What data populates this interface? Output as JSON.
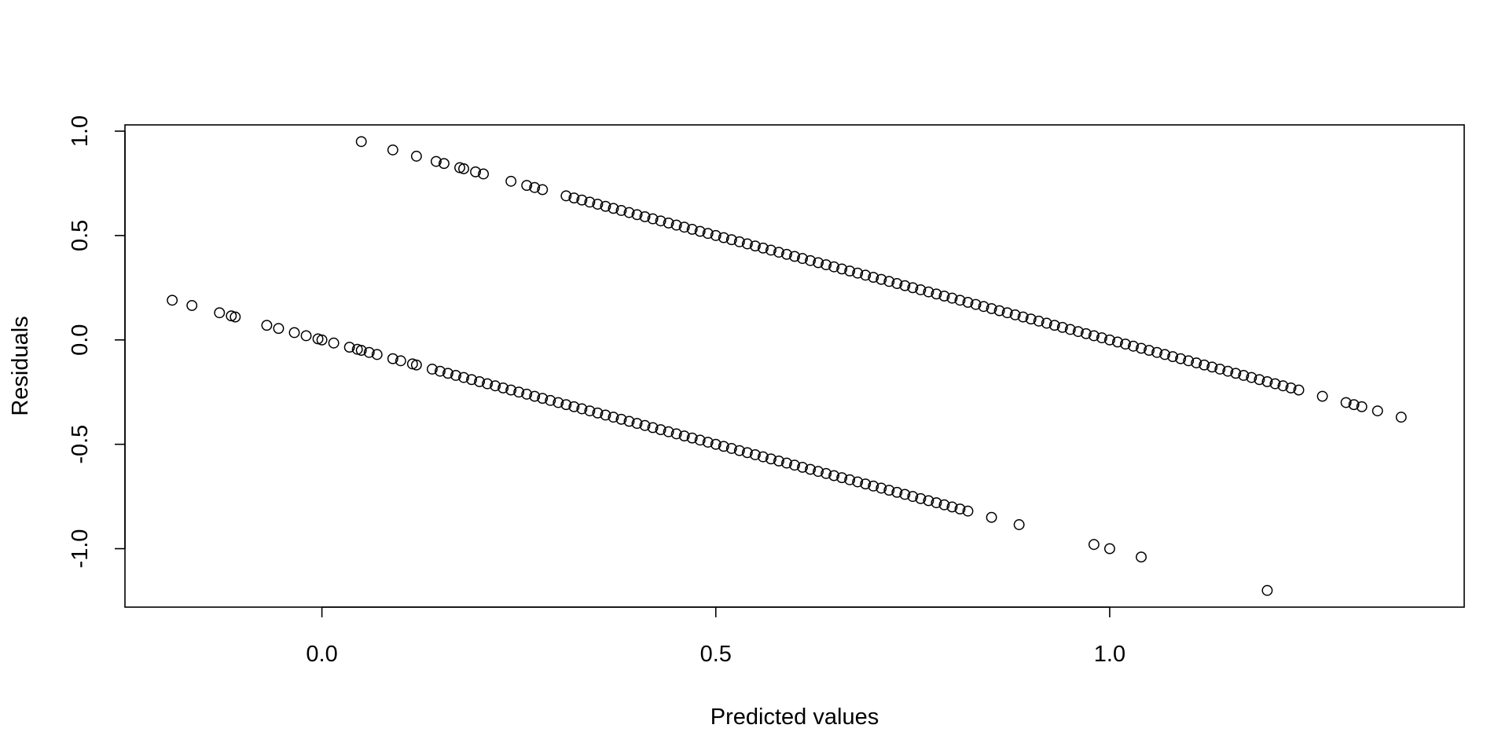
{
  "chart_data": {
    "type": "scatter",
    "title": "",
    "xlabel": "Predicted values",
    "ylabel": "Residuals",
    "xlim": [
      -0.25,
      1.45
    ],
    "ylim": [
      -1.28,
      1.03
    ],
    "x_ticks": [
      0.0,
      0.5,
      1.0
    ],
    "x_tick_labels": [
      "0.0",
      "0.5",
      "1.0"
    ],
    "y_ticks": [
      -1.0,
      -0.5,
      0.0,
      0.5,
      1.0
    ],
    "y_tick_labels": [
      "-1.0",
      "-0.5",
      "0.0",
      "0.5",
      "1.0"
    ],
    "grid": false,
    "marker": "open-circle",
    "colors": {
      "points": "#000000",
      "axes": "#000000",
      "background": "#ffffff"
    },
    "series": [
      {
        "points": [
          [
            0.05,
            0.95
          ],
          [
            0.09,
            0.91
          ],
          [
            0.12,
            0.88
          ],
          [
            0.145,
            0.855
          ],
          [
            0.155,
            0.845
          ],
          [
            0.175,
            0.825
          ],
          [
            0.18,
            0.82
          ],
          [
            0.195,
            0.805
          ],
          [
            0.205,
            0.795
          ],
          [
            0.24,
            0.76
          ],
          [
            0.26,
            0.74
          ],
          [
            0.27,
            0.73
          ],
          [
            0.28,
            0.72
          ],
          [
            0.31,
            0.69
          ],
          [
            0.32,
            0.68
          ],
          [
            0.33,
            0.67
          ],
          [
            0.34,
            0.66
          ],
          [
            0.35,
            0.65
          ],
          [
            0.36,
            0.64
          ],
          [
            0.37,
            0.63
          ],
          [
            0.38,
            0.62
          ],
          [
            0.39,
            0.61
          ],
          [
            0.4,
            0.6
          ],
          [
            0.41,
            0.59
          ],
          [
            0.42,
            0.58
          ],
          [
            0.43,
            0.57
          ],
          [
            0.44,
            0.56
          ],
          [
            0.45,
            0.55
          ],
          [
            0.46,
            0.54
          ],
          [
            0.47,
            0.53
          ],
          [
            0.48,
            0.52
          ],
          [
            0.49,
            0.51
          ],
          [
            0.5,
            0.5
          ],
          [
            0.51,
            0.49
          ],
          [
            0.52,
            0.48
          ],
          [
            0.53,
            0.47
          ],
          [
            0.54,
            0.46
          ],
          [
            0.55,
            0.45
          ],
          [
            0.56,
            0.44
          ],
          [
            0.57,
            0.43
          ],
          [
            0.58,
            0.42
          ],
          [
            0.59,
            0.41
          ],
          [
            0.6,
            0.4
          ],
          [
            0.61,
            0.39
          ],
          [
            0.62,
            0.38
          ],
          [
            0.63,
            0.37
          ],
          [
            0.64,
            0.36
          ],
          [
            0.65,
            0.35
          ],
          [
            0.66,
            0.34
          ],
          [
            0.67,
            0.33
          ],
          [
            0.68,
            0.32
          ],
          [
            0.69,
            0.31
          ],
          [
            0.7,
            0.3
          ],
          [
            0.71,
            0.29
          ],
          [
            0.72,
            0.28
          ],
          [
            0.73,
            0.27
          ],
          [
            0.74,
            0.26
          ],
          [
            0.75,
            0.25
          ],
          [
            0.76,
            0.24
          ],
          [
            0.77,
            0.23
          ],
          [
            0.78,
            0.22
          ],
          [
            0.79,
            0.21
          ],
          [
            0.8,
            0.2
          ],
          [
            0.81,
            0.19
          ],
          [
            0.82,
            0.18
          ],
          [
            0.83,
            0.17
          ],
          [
            0.84,
            0.16
          ],
          [
            0.85,
            0.15
          ],
          [
            0.86,
            0.14
          ],
          [
            0.87,
            0.13
          ],
          [
            0.88,
            0.12
          ],
          [
            0.89,
            0.11
          ],
          [
            0.9,
            0.1
          ],
          [
            0.91,
            0.09
          ],
          [
            0.92,
            0.08
          ],
          [
            0.93,
            0.07
          ],
          [
            0.94,
            0.06
          ],
          [
            0.95,
            0.05
          ],
          [
            0.96,
            0.04
          ],
          [
            0.97,
            0.03
          ],
          [
            0.98,
            0.02
          ],
          [
            0.99,
            0.01
          ],
          [
            1.0,
            0.0
          ],
          [
            1.01,
            -0.01
          ],
          [
            1.02,
            -0.02
          ],
          [
            1.03,
            -0.03
          ],
          [
            1.04,
            -0.04
          ],
          [
            1.05,
            -0.05
          ],
          [
            1.06,
            -0.06
          ],
          [
            1.07,
            -0.07
          ],
          [
            1.08,
            -0.08
          ],
          [
            1.09,
            -0.09
          ],
          [
            1.1,
            -0.1
          ],
          [
            1.11,
            -0.11
          ],
          [
            1.12,
            -0.12
          ],
          [
            1.13,
            -0.13
          ],
          [
            1.14,
            -0.14
          ],
          [
            1.15,
            -0.15
          ],
          [
            1.16,
            -0.16
          ],
          [
            1.17,
            -0.17
          ],
          [
            1.18,
            -0.18
          ],
          [
            1.19,
            -0.19
          ],
          [
            1.2,
            -0.2
          ],
          [
            1.21,
            -0.21
          ],
          [
            1.22,
            -0.22
          ],
          [
            1.23,
            -0.23
          ],
          [
            1.24,
            -0.24
          ],
          [
            1.27,
            -0.27
          ],
          [
            1.3,
            -0.3
          ],
          [
            1.31,
            -0.31
          ],
          [
            1.32,
            -0.32
          ],
          [
            1.34,
            -0.34
          ],
          [
            1.37,
            -0.37
          ]
        ]
      },
      {
        "points": [
          [
            -0.19,
            0.19
          ],
          [
            -0.165,
            0.165
          ],
          [
            -0.13,
            0.13
          ],
          [
            -0.115,
            0.115
          ],
          [
            -0.11,
            0.11
          ],
          [
            -0.07,
            0.07
          ],
          [
            -0.055,
            0.055
          ],
          [
            -0.035,
            0.035
          ],
          [
            -0.02,
            0.02
          ],
          [
            -0.005,
            0.005
          ],
          [
            0.0,
            0.0
          ],
          [
            0.015,
            -0.015
          ],
          [
            0.035,
            -0.035
          ],
          [
            0.045,
            -0.045
          ],
          [
            0.05,
            -0.05
          ],
          [
            0.06,
            -0.06
          ],
          [
            0.07,
            -0.07
          ],
          [
            0.09,
            -0.09
          ],
          [
            0.1,
            -0.1
          ],
          [
            0.115,
            -0.115
          ],
          [
            0.12,
            -0.12
          ],
          [
            0.14,
            -0.14
          ],
          [
            0.15,
            -0.15
          ],
          [
            0.16,
            -0.16
          ],
          [
            0.17,
            -0.17
          ],
          [
            0.18,
            -0.18
          ],
          [
            0.19,
            -0.19
          ],
          [
            0.2,
            -0.2
          ],
          [
            0.21,
            -0.21
          ],
          [
            0.22,
            -0.22
          ],
          [
            0.23,
            -0.23
          ],
          [
            0.24,
            -0.24
          ],
          [
            0.25,
            -0.25
          ],
          [
            0.26,
            -0.26
          ],
          [
            0.27,
            -0.27
          ],
          [
            0.28,
            -0.28
          ],
          [
            0.29,
            -0.29
          ],
          [
            0.3,
            -0.3
          ],
          [
            0.31,
            -0.31
          ],
          [
            0.32,
            -0.32
          ],
          [
            0.33,
            -0.33
          ],
          [
            0.34,
            -0.34
          ],
          [
            0.35,
            -0.35
          ],
          [
            0.36,
            -0.36
          ],
          [
            0.37,
            -0.37
          ],
          [
            0.38,
            -0.38
          ],
          [
            0.39,
            -0.39
          ],
          [
            0.4,
            -0.4
          ],
          [
            0.41,
            -0.41
          ],
          [
            0.42,
            -0.42
          ],
          [
            0.43,
            -0.43
          ],
          [
            0.44,
            -0.44
          ],
          [
            0.45,
            -0.45
          ],
          [
            0.46,
            -0.46
          ],
          [
            0.47,
            -0.47
          ],
          [
            0.48,
            -0.48
          ],
          [
            0.49,
            -0.49
          ],
          [
            0.5,
            -0.5
          ],
          [
            0.51,
            -0.51
          ],
          [
            0.52,
            -0.52
          ],
          [
            0.53,
            -0.53
          ],
          [
            0.54,
            -0.54
          ],
          [
            0.55,
            -0.55
          ],
          [
            0.56,
            -0.56
          ],
          [
            0.57,
            -0.57
          ],
          [
            0.58,
            -0.58
          ],
          [
            0.59,
            -0.59
          ],
          [
            0.6,
            -0.6
          ],
          [
            0.61,
            -0.61
          ],
          [
            0.62,
            -0.62
          ],
          [
            0.63,
            -0.63
          ],
          [
            0.64,
            -0.64
          ],
          [
            0.65,
            -0.65
          ],
          [
            0.66,
            -0.66
          ],
          [
            0.67,
            -0.67
          ],
          [
            0.68,
            -0.68
          ],
          [
            0.69,
            -0.69
          ],
          [
            0.7,
            -0.7
          ],
          [
            0.71,
            -0.71
          ],
          [
            0.72,
            -0.72
          ],
          [
            0.73,
            -0.73
          ],
          [
            0.74,
            -0.74
          ],
          [
            0.75,
            -0.75
          ],
          [
            0.76,
            -0.76
          ],
          [
            0.77,
            -0.77
          ],
          [
            0.78,
            -0.78
          ],
          [
            0.79,
            -0.79
          ],
          [
            0.8,
            -0.8
          ],
          [
            0.81,
            -0.81
          ],
          [
            0.82,
            -0.82
          ],
          [
            0.85,
            -0.85
          ],
          [
            0.885,
            -0.885
          ],
          [
            0.98,
            -0.98
          ],
          [
            1.0,
            -1.0
          ],
          [
            1.04,
            -1.04
          ],
          [
            1.2,
            -1.2
          ]
        ]
      }
    ]
  }
}
